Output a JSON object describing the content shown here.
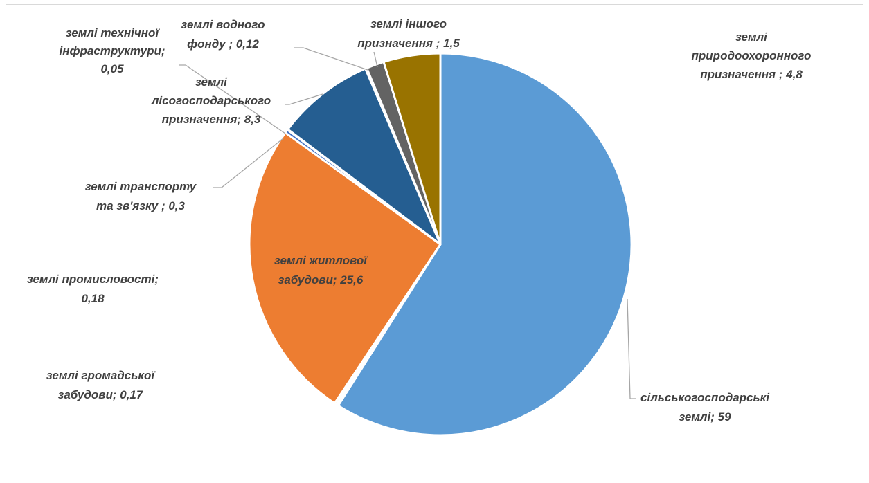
{
  "chart_data": {
    "type": "pie",
    "title": "",
    "slices": [
      {
        "label": "сільськогосподарські землі",
        "value": 59,
        "color": "#5b9bd5",
        "text_lines": [
          "сільськогосподарські",
          "землі; 59"
        ]
      },
      {
        "label": "землі громадської забудови",
        "value": 0.17,
        "color": "#a5a5a5",
        "text_lines": [
          "землі громадської",
          "забудови; 0,17"
        ]
      },
      {
        "label": "землі промисловості",
        "value": 0.18,
        "color": "#ffc000",
        "text_lines": [
          "землі промисловості;",
          "0,18"
        ]
      },
      {
        "label": "землі житлової забудови",
        "value": 25.6,
        "color": "#ed7d31",
        "text_lines": [
          "землі житлової",
          "забудови; 25,6"
        ]
      },
      {
        "label": "землі транспорту та зв'язку",
        "value": 0.3,
        "color": "#4472c4",
        "text_lines": [
          "землі транспорту",
          "та зв'язку ; 0,3"
        ]
      },
      {
        "label": "землі технічної інфраструктури",
        "value": 0.05,
        "color": "#70ad47",
        "text_lines": [
          "землі технічної",
          "інфраструктури;",
          "0,05"
        ]
      },
      {
        "label": "землі лісогосподарського призначення",
        "value": 8.3,
        "color": "#255e91",
        "text_lines": [
          "землі",
          "лісогосподарського",
          "призначення; 8,3"
        ]
      },
      {
        "label": "землі водного фонду",
        "value": 0.12,
        "color": "#9e480e",
        "text_lines": [
          "землі водного",
          "фонду ; 0,12"
        ]
      },
      {
        "label": "землі іншого призначення",
        "value": 1.5,
        "color": "#636363",
        "text_lines": [
          "землі іншого",
          "призначення ; 1,5"
        ]
      },
      {
        "label": "землі природоохоронного призначення",
        "value": 4.8,
        "color": "#997300",
        "text_lines": [
          "землі",
          "природоохоронного",
          "призначення ; 4,8"
        ]
      }
    ],
    "legend": "none",
    "data_labels": "category; value"
  }
}
